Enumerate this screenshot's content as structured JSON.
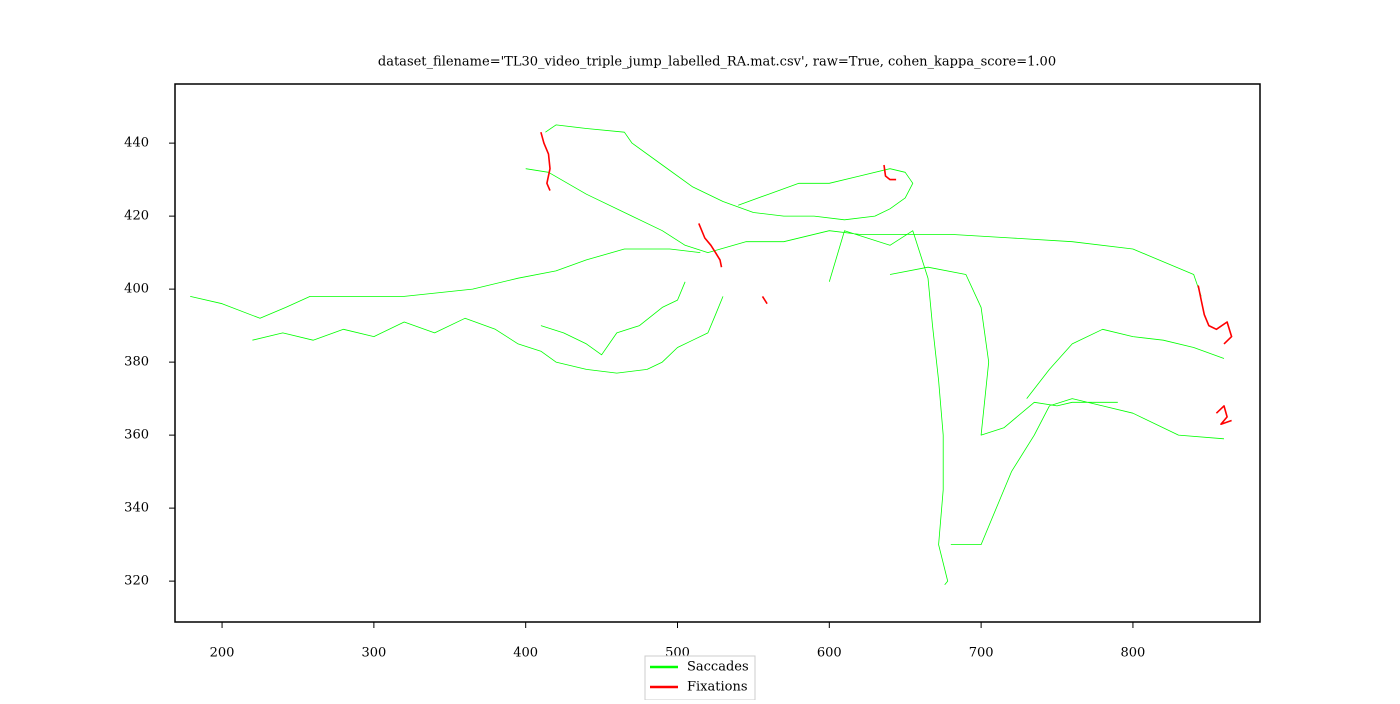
{
  "chart_data": {
    "type": "line",
    "title": "dataset_filename='TL30_video_triple_jump_labelled_RA.mat.csv', raw=True, cohen_kappa_score=1.00",
    "xlim": [
      169,
      883.7
    ],
    "ylim": [
      308.8,
      456.2
    ],
    "xticks": [
      200,
      300,
      400,
      500,
      600,
      700,
      800
    ],
    "yticks": [
      320,
      340,
      360,
      380,
      400,
      420,
      440
    ],
    "grid": false,
    "legend": "lower center",
    "series": [
      {
        "name": "Saccades",
        "color": "#00ff00",
        "x": [
          179,
          200,
          225,
          242,
          258,
          320,
          365,
          395,
          420,
          440,
          465,
          495,
          515,
          null,
          220,
          240,
          260,
          280,
          300,
          320,
          340,
          360,
          380,
          395,
          410,
          420,
          440,
          460,
          480,
          490,
          500,
          510,
          520,
          525,
          530,
          null,
          413,
          420,
          440,
          465,
          470,
          490,
          510,
          530,
          550,
          570,
          590,
          610,
          630,
          640,
          650,
          655,
          650,
          640,
          620,
          600,
          580,
          560,
          540,
          null,
          400,
          415,
          440,
          470,
          490,
          505,
          520,
          545,
          570,
          600,
          620,
          680,
          720,
          760,
          800,
          840,
          845,
          null,
          600,
          610,
          640,
          655,
          665,
          668,
          672,
          675,
          675,
          672,
          678,
          676,
          null,
          680,
          700,
          710,
          720,
          735,
          745,
          760,
          780,
          800,
          830,
          860,
          null,
          730,
          745,
          760,
          780,
          800,
          820,
          840,
          860,
          null,
          640,
          665,
          690,
          700,
          705,
          700,
          715,
          735,
          750,
          760,
          790,
          null,
          505,
          500,
          490,
          475,
          460,
          450,
          440,
          425,
          410
        ],
        "y": [
          398,
          396,
          392,
          395,
          398,
          398,
          400,
          403,
          405,
          408,
          411,
          411,
          410,
          null,
          386,
          388,
          386,
          389,
          387,
          391,
          388,
          392,
          389,
          385,
          383,
          380,
          378,
          377,
          378,
          380,
          384,
          386,
          388,
          393,
          398,
          null,
          443,
          445,
          444,
          443,
          440,
          434,
          428,
          424,
          421,
          420,
          420,
          419,
          420,
          422,
          425,
          429,
          432,
          433,
          431,
          429,
          429,
          426,
          423,
          null,
          433,
          432,
          426,
          420,
          416,
          412,
          410,
          413,
          413,
          416,
          415,
          415,
          414,
          413,
          411,
          404,
          398,
          null,
          402,
          416,
          412,
          416,
          403,
          390,
          375,
          360,
          345,
          330,
          320,
          319,
          null,
          330,
          330,
          340,
          350,
          360,
          368,
          370,
          368,
          366,
          360,
          359,
          null,
          370,
          378,
          385,
          389,
          387,
          386,
          384,
          381,
          null,
          404,
          406,
          404,
          395,
          380,
          360,
          362,
          369,
          368,
          369,
          369,
          null,
          402,
          397,
          395,
          390,
          388,
          382,
          385,
          388,
          390
        ]
      },
      {
        "name": "Fixations",
        "color": "#ff0000",
        "x": [
          410,
          412,
          415,
          416,
          414,
          416,
          null,
          636,
          637,
          640,
          644,
          null,
          514,
          518,
          522,
          525,
          528,
          529,
          null,
          843,
          845,
          847,
          850,
          855,
          862,
          865,
          860,
          null,
          855,
          860,
          862,
          858,
          865,
          null,
          556,
          559
        ],
        "y": [
          443,
          440,
          437,
          433,
          429,
          427,
          null,
          434,
          431,
          430,
          430,
          null,
          418,
          414,
          412,
          410,
          408,
          406,
          null,
          401,
          397,
          393,
          390,
          389,
          391,
          387,
          385,
          null,
          366,
          368,
          365,
          363,
          364,
          null,
          398,
          396
        ]
      }
    ]
  }
}
